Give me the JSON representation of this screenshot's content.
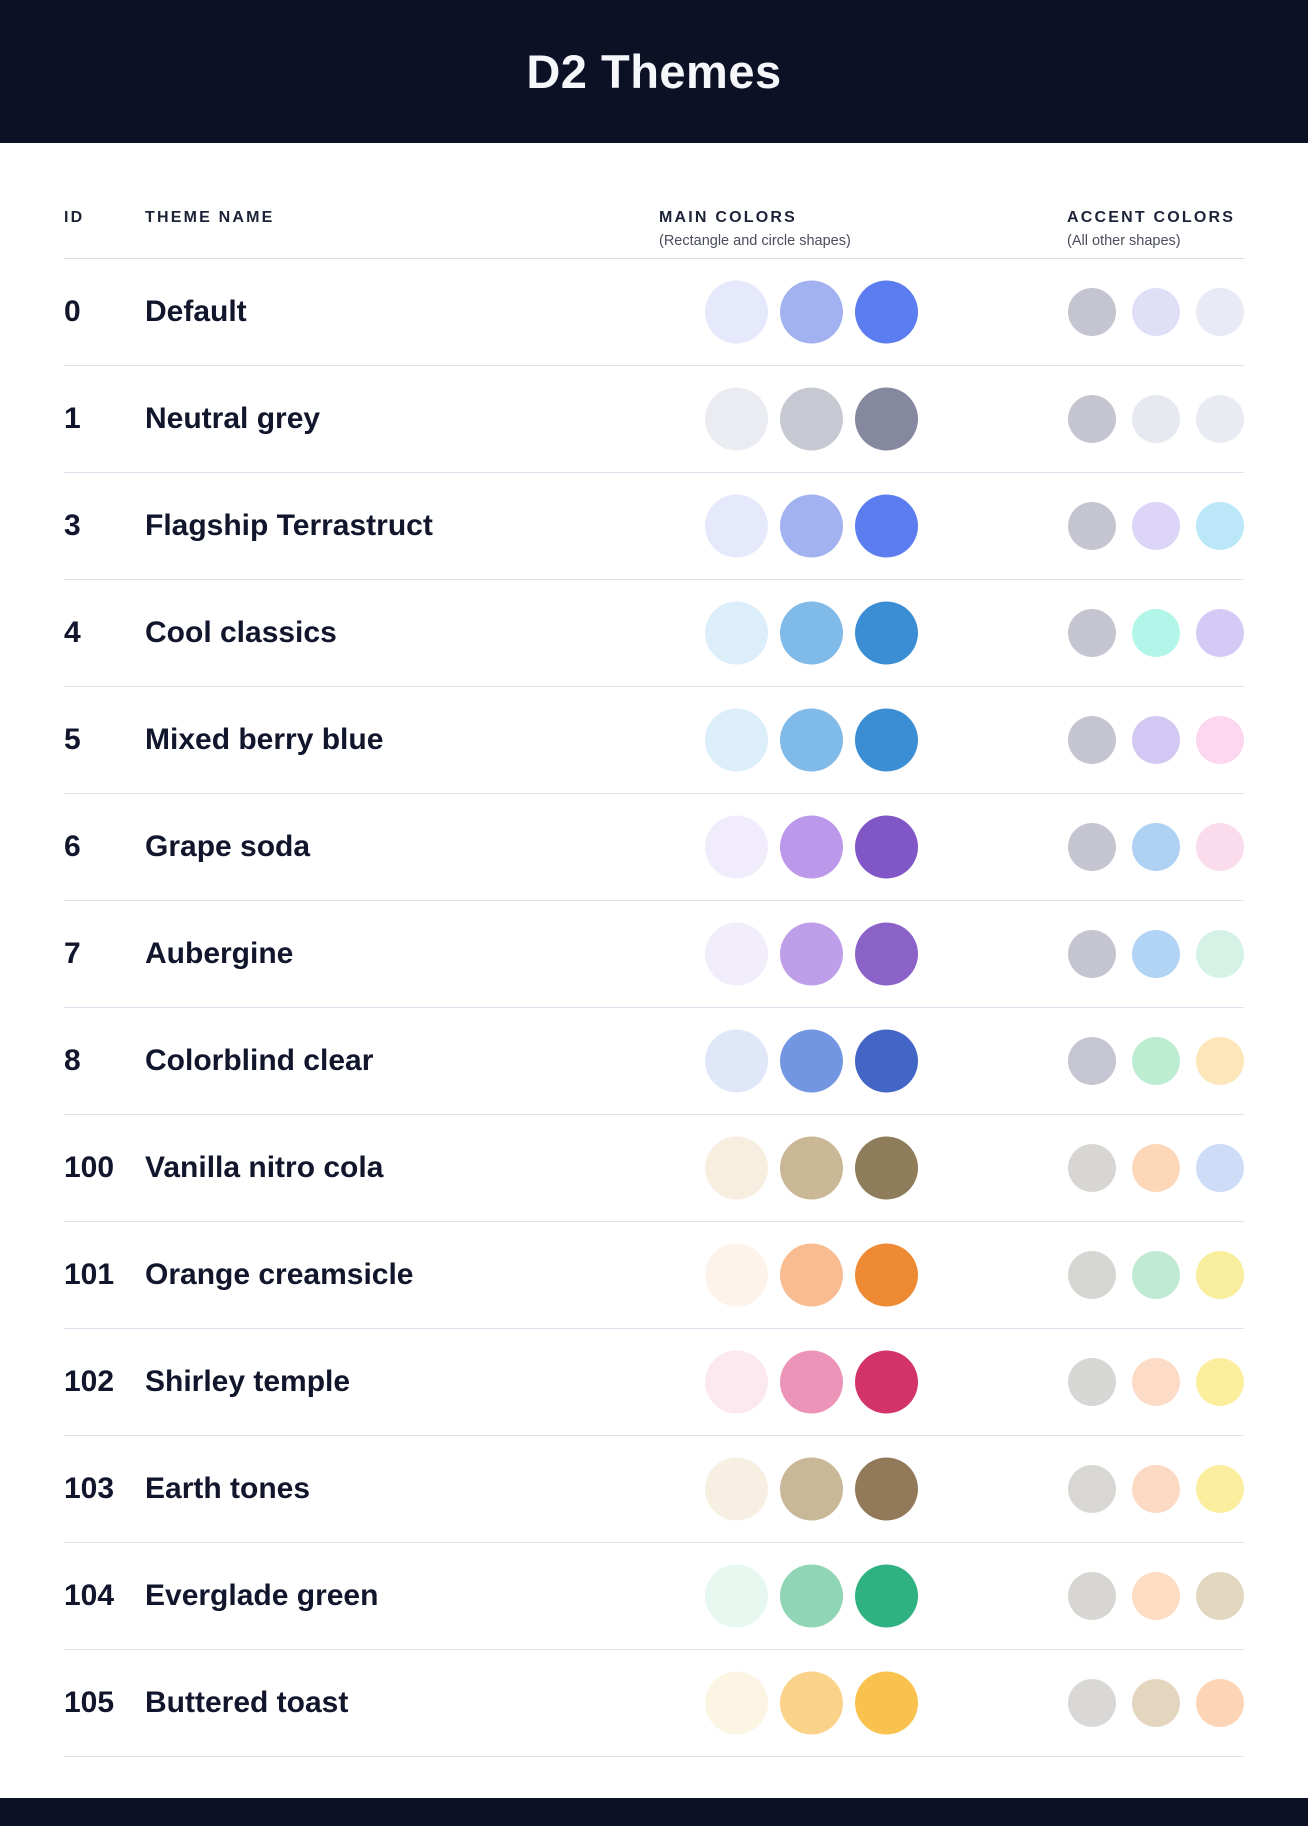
{
  "header": {
    "title": "D2 Themes",
    "background": "#0D1126",
    "text_color": "#F6F7FA"
  },
  "columns": {
    "id_label": "ID",
    "theme_name_label": "THEME NAME",
    "main_label": "MAIN COLORS",
    "main_sublabel": "(Rectangle and circle shapes)",
    "accent_label": "ACCENT COLORS",
    "accent_sublabel": "(All other shapes)"
  },
  "themes": [
    {
      "id": "0",
      "name": "Default",
      "main_colors": [
        "#E5E9FB",
        "#A2B2F0",
        "#5B7DF0"
      ],
      "accent_colors": [
        "#C4C5D0",
        "#DFE0F8",
        "#E8EAF5"
      ]
    },
    {
      "id": "1",
      "name": "Neutral grey",
      "main_colors": [
        "#EAECF2",
        "#C7C9D2",
        "#85889E"
      ],
      "accent_colors": [
        "#C4C5D0",
        "#E7E9F1",
        "#E9EBF2"
      ]
    },
    {
      "id": "3",
      "name": "Flagship Terrastruct",
      "main_colors": [
        "#E5E9FB",
        "#A2B2F0",
        "#5B7DF0"
      ],
      "accent_colors": [
        "#C4C5D0",
        "#DCD5F7",
        "#BCE7F8"
      ]
    },
    {
      "id": "4",
      "name": "Cool classics",
      "main_colors": [
        "#DCEEFA",
        "#7FBAE9",
        "#3B8DD4"
      ],
      "accent_colors": [
        "#C4C5D0",
        "#B4F5E9",
        "#D5CAF6"
      ]
    },
    {
      "id": "5",
      "name": "Mixed berry blue",
      "main_colors": [
        "#DCEEFA",
        "#7FBAE9",
        "#3B8DD4"
      ],
      "accent_colors": [
        "#C4C5D0",
        "#D3C7F3",
        "#FBD8EF"
      ]
    },
    {
      "id": "6",
      "name": "Grape soda",
      "main_colors": [
        "#F1ECFB",
        "#BB98EA",
        "#8157C8"
      ],
      "accent_colors": [
        "#C4C5D0",
        "#AFD2F4",
        "#FBDCEC"
      ]
    },
    {
      "id": "7",
      "name": "Aubergine",
      "main_colors": [
        "#F2EDFA",
        "#BE9DE9",
        "#8A62C8"
      ],
      "accent_colors": [
        "#C4C5D0",
        "#B1D3F4",
        "#D5F2E7"
      ]
    },
    {
      "id": "8",
      "name": "Colorblind clear",
      "main_colors": [
        "#DFE7F9",
        "#7396E3",
        "#4366C6"
      ],
      "accent_colors": [
        "#C5C6D2",
        "#BCEDD2",
        "#FDE7BA"
      ]
    },
    {
      "id": "100",
      "name": "Vanilla nitro cola",
      "main_colors": [
        "#F8EEE0",
        "#C9B795",
        "#8F7C5B"
      ],
      "accent_colors": [
        "#D7D6D3",
        "#FCD8B8",
        "#CFDCF8"
      ]
    },
    {
      "id": "101",
      "name": "Orange creamsicle",
      "main_colors": [
        "#FDF3EA",
        "#F8BC90",
        "#EE8A33"
      ],
      "accent_colors": [
        "#D6D6D2",
        "#C0EAD3",
        "#F9EE9D"
      ]
    },
    {
      "id": "102",
      "name": "Shirley temple",
      "main_colors": [
        "#FCE9EF",
        "#EC94B8",
        "#D23368"
      ],
      "accent_colors": [
        "#D6D6D4",
        "#FCDCC7",
        "#FBEF9D"
      ]
    },
    {
      "id": "103",
      "name": "Earth tones",
      "main_colors": [
        "#F8EFE3",
        "#C9B897",
        "#92795A"
      ],
      "accent_colors": [
        "#D8D7D3",
        "#FCD9C2",
        "#FBEF9F"
      ]
    },
    {
      "id": "104",
      "name": "Everglade green",
      "main_colors": [
        "#E7F8F1",
        "#90D5B6",
        "#2FB182"
      ],
      "accent_colors": [
        "#D7D6D2",
        "#FCDCC3",
        "#E3D6BF"
      ]
    },
    {
      "id": "105",
      "name": "Buttered toast",
      "main_colors": [
        "#FDF5E4",
        "#FBD28A",
        "#F9C24F"
      ],
      "accent_colors": [
        "#D9D8D6",
        "#E4D5BE",
        "#FDD5B6"
      ]
    }
  ],
  "footer": {
    "background": "#0D1126"
  }
}
